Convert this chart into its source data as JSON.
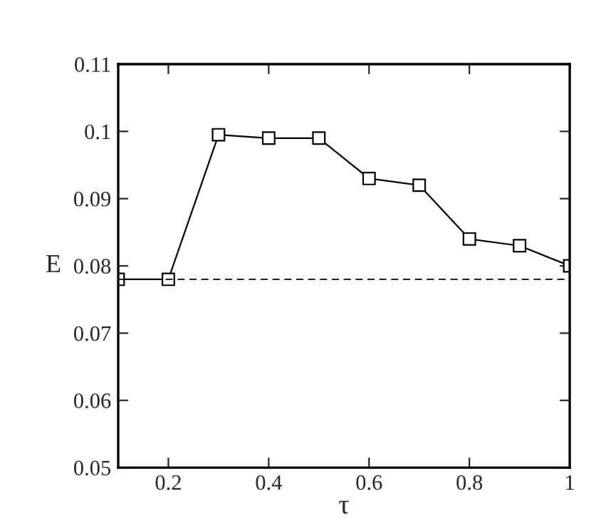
{
  "chart_data": {
    "type": "line",
    "xlabel": "τ",
    "ylabel": "E",
    "x": [
      0.1,
      0.2,
      0.3,
      0.4,
      0.5,
      0.6,
      0.7,
      0.8,
      0.9,
      1.0
    ],
    "series": [
      {
        "color": "#000000",
        "values": [
          0.078,
          0.078,
          0.0995,
          0.099,
          0.099,
          0.093,
          0.092,
          0.084,
          0.083,
          0.08
        ]
      }
    ],
    "xlim": [
      0.1,
      1
    ],
    "ylim": [
      0.05,
      0.11
    ],
    "xticks": [
      0.2,
      0.4,
      0.6,
      0.8,
      {
        "value": 1,
        "label": "1"
      }
    ],
    "yticks": [
      0.05,
      0.06,
      0.07,
      0.08,
      0.09,
      {
        "value": 0.1,
        "label": "0.1"
      },
      0.11
    ],
    "ref_lines": [
      {
        "axis": "y",
        "value": 0.078,
        "color": "#000000",
        "line_style": "dashed"
      }
    ],
    "marker": "square",
    "line_style": "solid",
    "grid": false,
    "legend": false
  }
}
